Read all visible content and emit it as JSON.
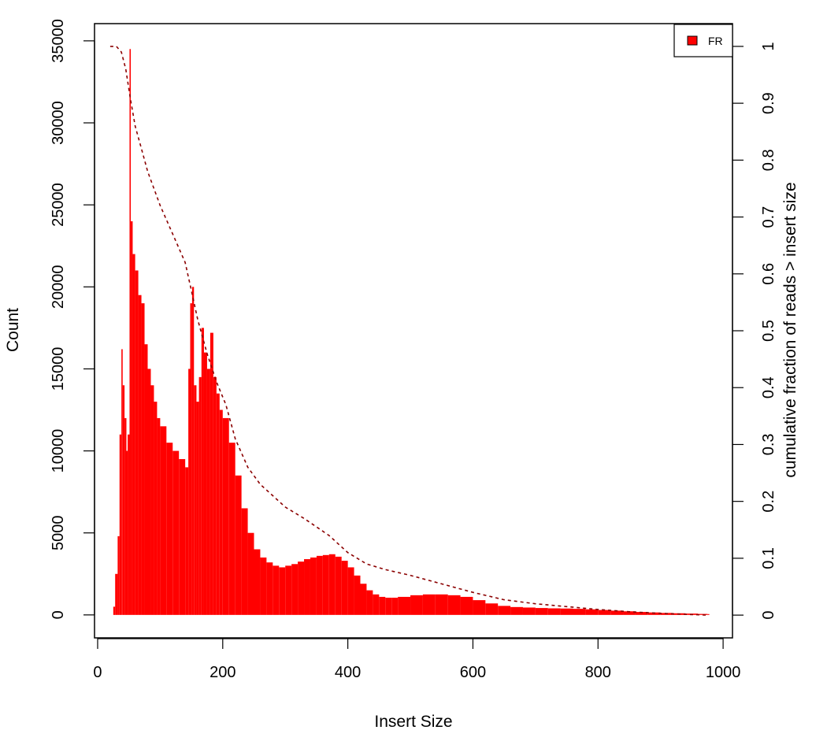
{
  "chart_data": {
    "type": "bar",
    "title": "",
    "xlabel": "Insert Size",
    "ylabel": "Count",
    "y2label": "cumulative fraction of reads > insert size",
    "xlim": [
      -5,
      1015
    ],
    "ylim": [
      -1400,
      36050
    ],
    "y2lim": [
      -0.04,
      1.04
    ],
    "x_ticks": [
      0,
      200,
      400,
      600,
      800,
      1000
    ],
    "y_ticks": [
      0,
      5000,
      10000,
      15000,
      20000,
      25000,
      30000,
      35000
    ],
    "y2_ticks": [
      0,
      0.1,
      0.2,
      0.3,
      0.4,
      0.5,
      0.6,
      0.7,
      0.8,
      0.9,
      1
    ],
    "grid": false,
    "legend": {
      "position": "top-right",
      "entries": [
        {
          "label": "FR",
          "color": "#ff0000"
        }
      ]
    },
    "colors": {
      "histogram": "#ff0000",
      "cumulative": "#8b0000"
    },
    "series": [
      {
        "name": "FR",
        "kind": "histogram",
        "x": [
          22,
          25,
          28,
          32,
          35,
          38,
          40,
          43,
          46,
          48,
          51,
          53,
          56,
          60,
          65,
          70,
          75,
          80,
          85,
          90,
          95,
          100,
          110,
          120,
          130,
          140,
          145,
          148,
          151,
          154,
          158,
          162,
          166,
          170,
          175,
          180,
          185,
          190,
          195,
          200,
          210,
          220,
          230,
          240,
          250,
          260,
          270,
          280,
          290,
          300,
          310,
          320,
          330,
          340,
          350,
          360,
          370,
          380,
          390,
          400,
          410,
          420,
          430,
          440,
          450,
          460,
          470,
          480,
          500,
          520,
          540,
          560,
          580,
          600,
          620,
          640,
          660,
          680,
          700,
          720,
          740,
          760,
          780,
          800,
          820,
          840,
          860,
          880,
          900,
          920,
          940,
          960,
          975
        ],
        "values": [
          0,
          500,
          2500,
          4800,
          11000,
          16200,
          14000,
          12000,
          10000,
          11000,
          34500,
          24000,
          22000,
          21000,
          19500,
          19000,
          16500,
          15000,
          14000,
          13000,
          12000,
          11500,
          10500,
          10000,
          9500,
          9000,
          15000,
          19000,
          20000,
          14000,
          13000,
          14500,
          17500,
          16000,
          15000,
          17200,
          14500,
          13500,
          12500,
          12000,
          10500,
          8500,
          6500,
          5000,
          4000,
          3500,
          3200,
          3000,
          2900,
          3000,
          3100,
          3250,
          3400,
          3500,
          3600,
          3650,
          3700,
          3550,
          3300,
          2900,
          2400,
          1900,
          1500,
          1250,
          1100,
          1050,
          1050,
          1100,
          1200,
          1250,
          1250,
          1200,
          1100,
          900,
          700,
          550,
          480,
          450,
          420,
          400,
          390,
          370,
          340,
          300,
          260,
          220,
          180,
          150,
          120,
          100,
          80,
          60,
          50
        ]
      },
      {
        "name": "",
        "kind": "cumulative",
        "x": [
          20,
          30,
          38,
          45,
          52,
          60,
          70,
          80,
          100,
          120,
          140,
          150,
          160,
          175,
          190,
          205,
          220,
          240,
          260,
          280,
          300,
          330,
          370,
          400,
          430,
          460,
          500,
          550,
          600,
          650,
          700,
          750,
          800,
          850,
          900,
          950,
          975
        ],
        "values": [
          1,
          1,
          0.99,
          0.96,
          0.91,
          0.86,
          0.82,
          0.78,
          0.72,
          0.67,
          0.62,
          0.57,
          0.52,
          0.46,
          0.41,
          0.37,
          0.31,
          0.26,
          0.23,
          0.21,
          0.19,
          0.17,
          0.14,
          0.11,
          0.09,
          0.08,
          0.07,
          0.055,
          0.04,
          0.027,
          0.02,
          0.015,
          0.01,
          0.006,
          0.003,
          0.001,
          0
        ]
      }
    ]
  }
}
